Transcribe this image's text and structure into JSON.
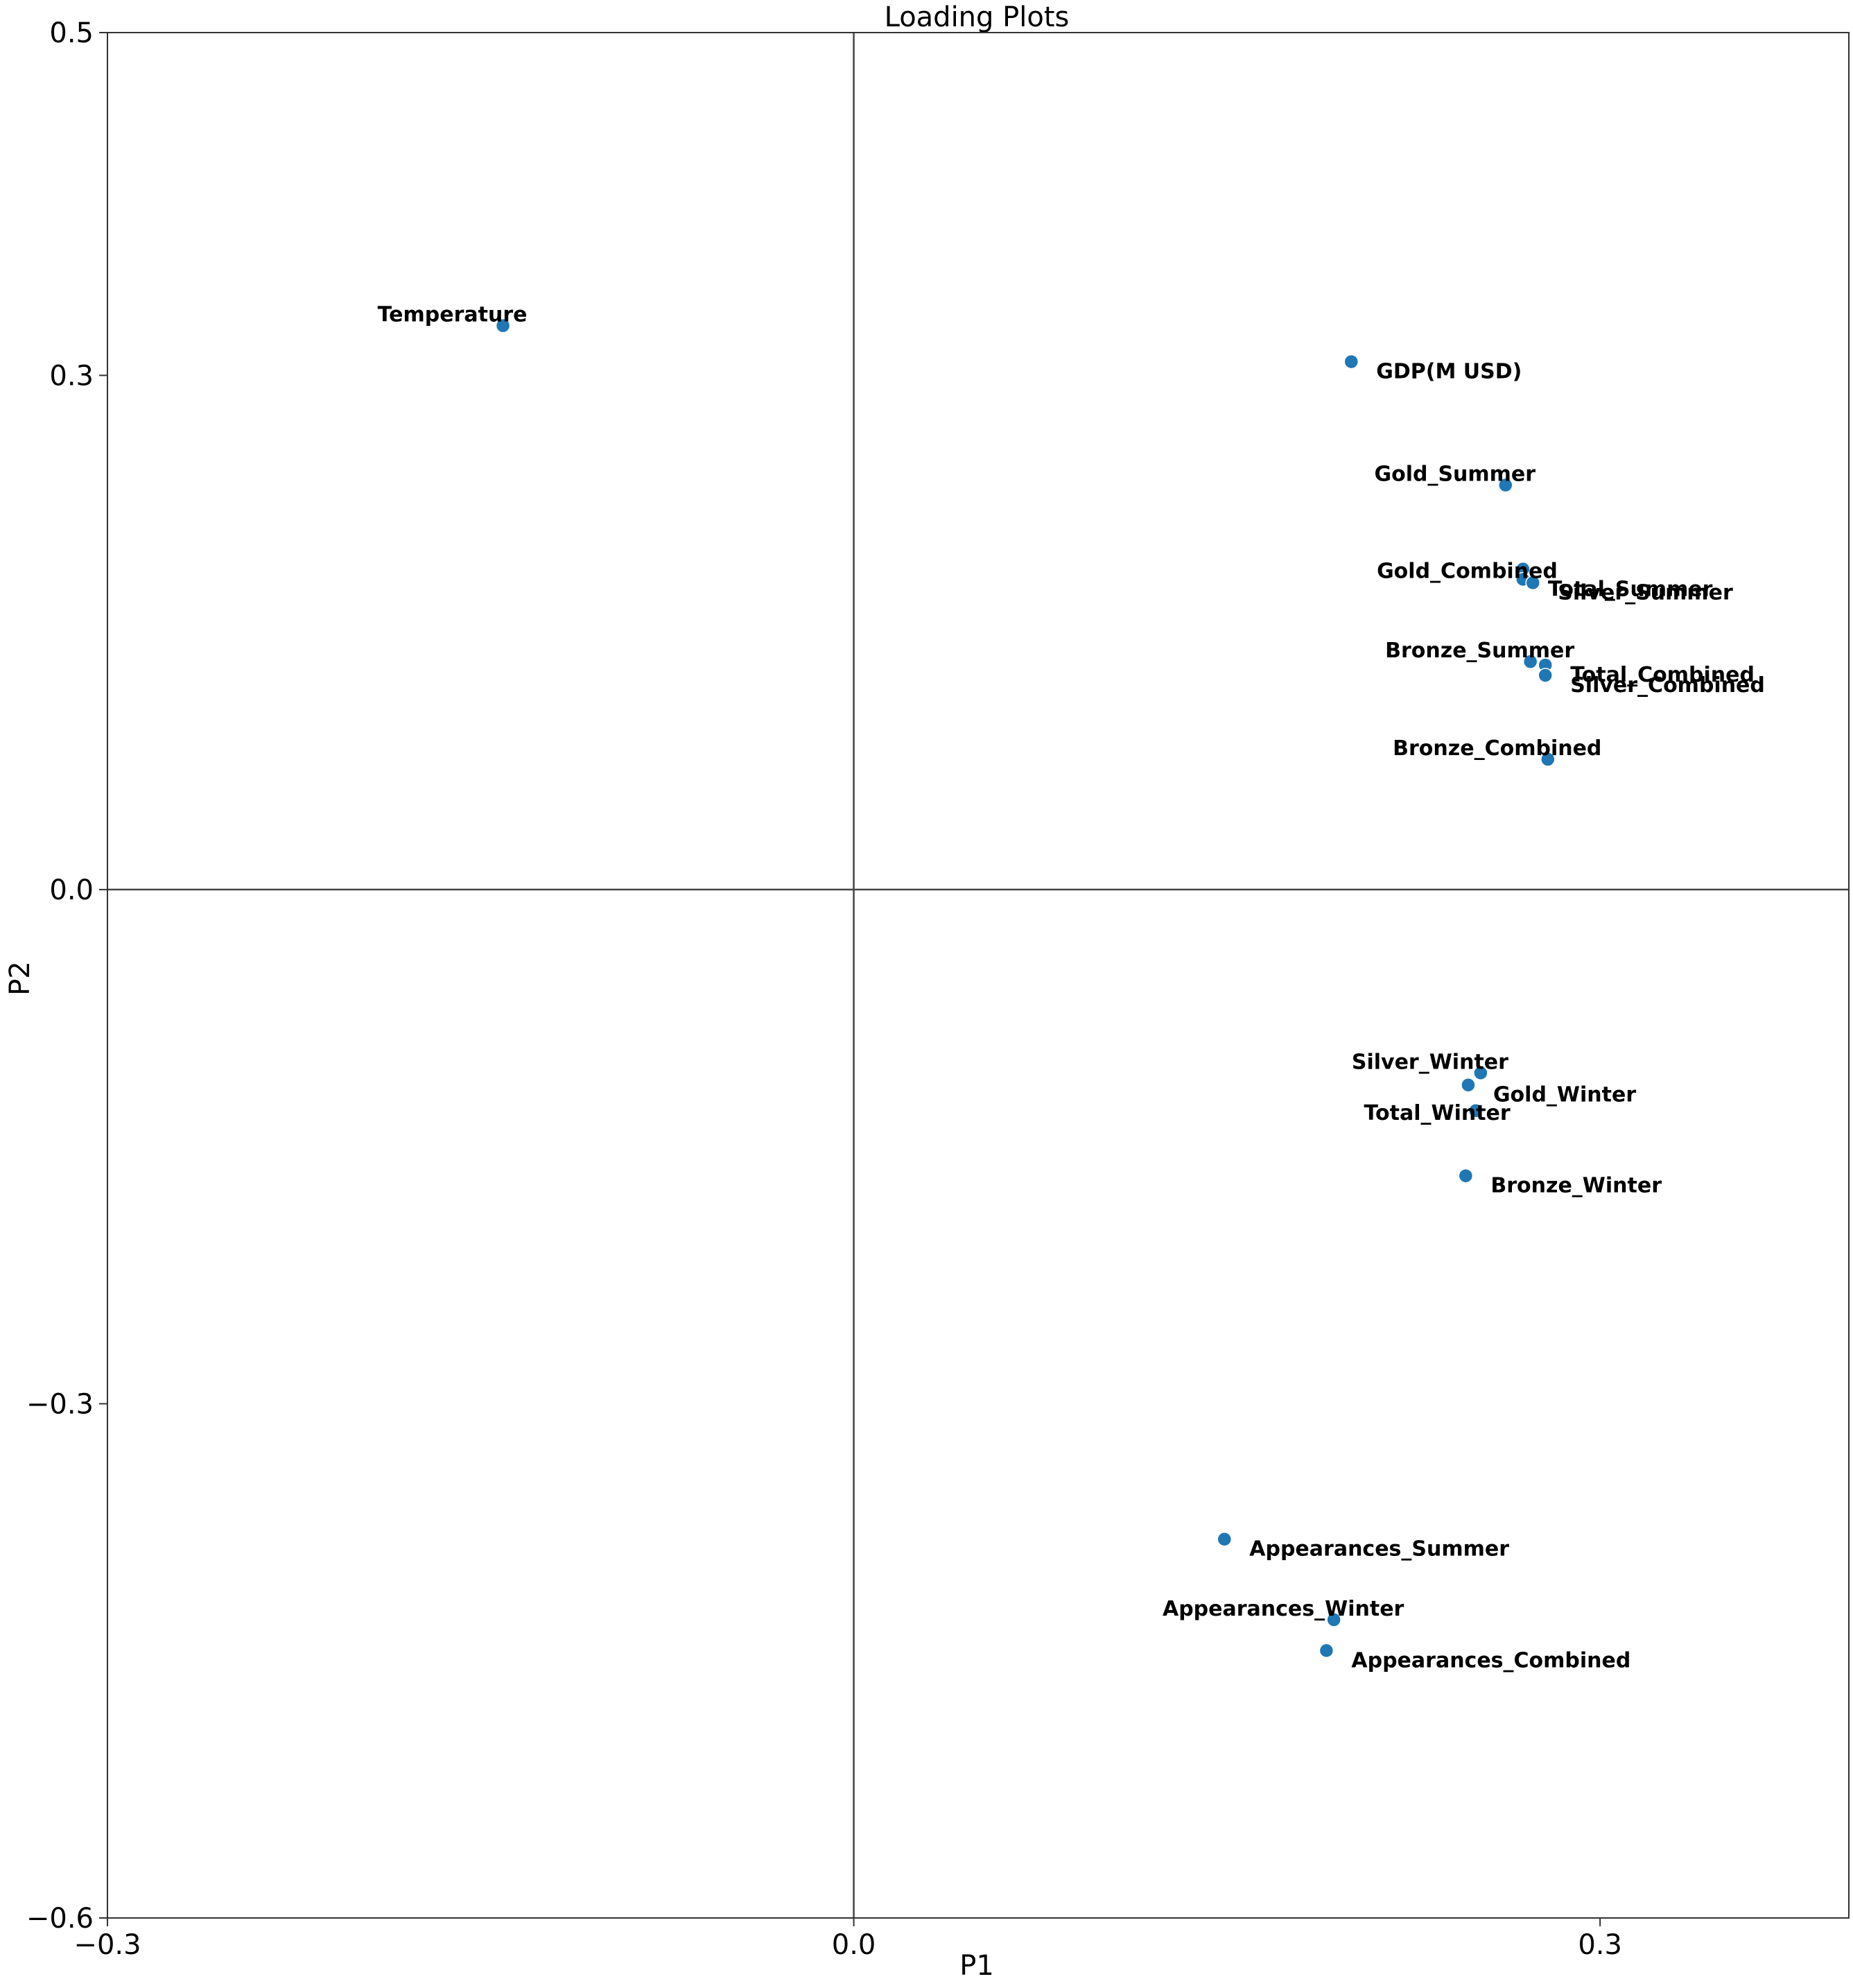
{
  "chart_data": {
    "type": "scatter",
    "title": "Loading Plots",
    "xlabel": "P1",
    "ylabel": "P2",
    "xlim": [
      -0.3,
      0.4
    ],
    "ylim": [
      -0.6,
      0.5
    ],
    "xticks": [
      -0.3,
      0.0,
      0.3
    ],
    "yticks": [
      -0.6,
      -0.3,
      0.0,
      0.3,
      0.5
    ],
    "xtick_labels": [
      "−0.3",
      "0.0",
      "0.3"
    ],
    "ytick_labels": [
      "−0.6",
      "−0.3",
      "0.0",
      "0.3",
      "0.5"
    ],
    "grid": false,
    "legend": false,
    "reference_lines": {
      "x": 0.0,
      "y": 0.0
    },
    "point_color": "#1f77b4",
    "points": [
      {
        "label": "Temperature",
        "x": -0.141,
        "y": 0.329,
        "label_side": "above"
      },
      {
        "label": "GDP(M USD)",
        "x": 0.2,
        "y": 0.308,
        "label_side": "right"
      },
      {
        "label": "Gold_Summer",
        "x": 0.262,
        "y": 0.236,
        "label_side": "above"
      },
      {
        "label": "Gold_Combined",
        "x": 0.269,
        "y": 0.187,
        "label_side": "left"
      },
      {
        "label": "Total_Summer",
        "x": 0.269,
        "y": 0.181,
        "label_side": "right"
      },
      {
        "label": "Silver_Summer",
        "x": 0.273,
        "y": 0.179,
        "label_side": "right"
      },
      {
        "label": "Bronze_Summer",
        "x": 0.272,
        "y": 0.133,
        "label_side": "above"
      },
      {
        "label": "Total_Combined",
        "x": 0.278,
        "y": 0.131,
        "label_side": "right"
      },
      {
        "label": "Silver_Combined",
        "x": 0.278,
        "y": 0.125,
        "label_side": "right"
      },
      {
        "label": "Bronze_Combined",
        "x": 0.279,
        "y": 0.076,
        "label_side": "above"
      },
      {
        "label": "Silver_Winter",
        "x": 0.252,
        "y": -0.107,
        "label_side": "above"
      },
      {
        "label": "Gold_Winter",
        "x": 0.247,
        "y": -0.114,
        "label_side": "right"
      },
      {
        "label": "Total_Winter",
        "x": 0.25,
        "y": -0.129,
        "label_side": "left"
      },
      {
        "label": "Bronze_Winter",
        "x": 0.246,
        "y": -0.167,
        "label_side": "right"
      },
      {
        "label": "Appearances_Summer",
        "x": 0.149,
        "y": -0.379,
        "label_side": "right"
      },
      {
        "label": "Appearances_Winter",
        "x": 0.193,
        "y": -0.426,
        "label_side": "above"
      },
      {
        "label": "Appearances_Combined",
        "x": 0.19,
        "y": -0.444,
        "label_side": "right"
      }
    ]
  }
}
